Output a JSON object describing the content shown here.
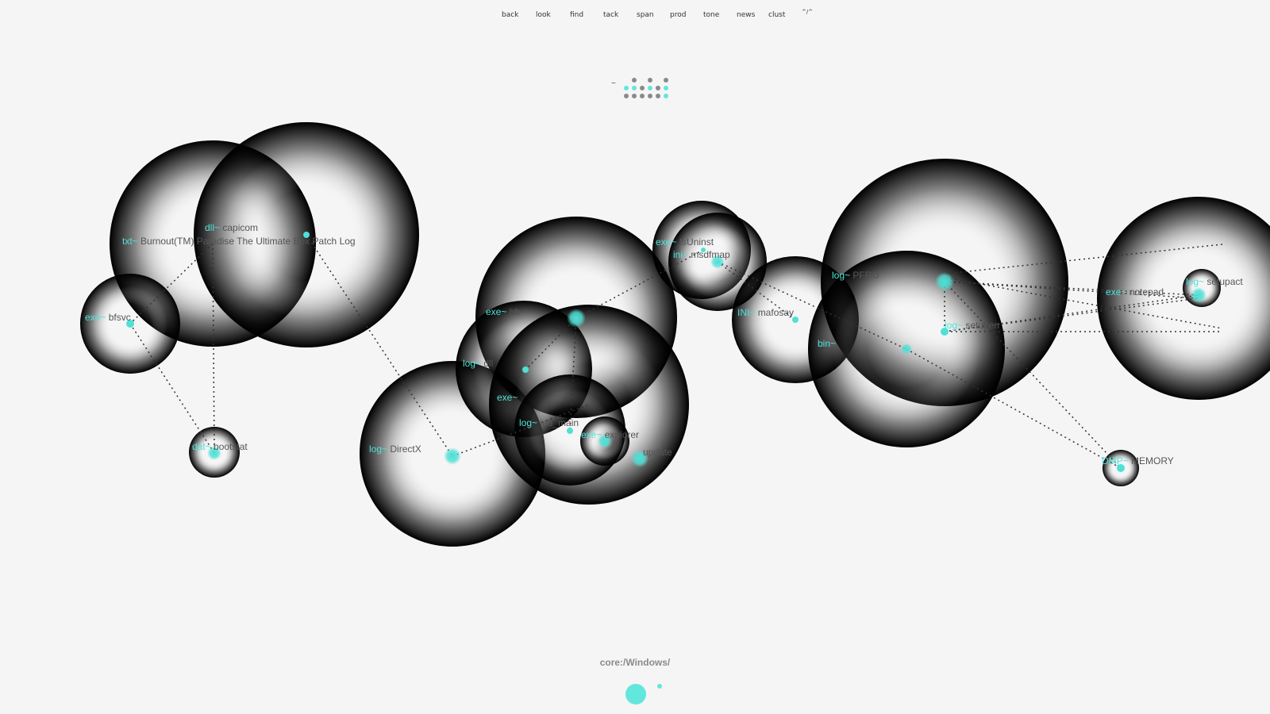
{
  "nav": {
    "items": [
      {
        "label": "back"
      },
      {
        "label": "look"
      },
      {
        "label": "find"
      },
      {
        "label": "tack"
      },
      {
        "label": "span"
      },
      {
        "label": "prod"
      },
      {
        "label": "tone"
      },
      {
        "label": "news"
      },
      {
        "label": "clust"
      },
      {
        "label": "^/^"
      }
    ]
  },
  "dotgrid": {
    "prefix": "~"
  },
  "colors": {
    "accent": "#4fe0d6",
    "background": "#f5f5f5",
    "label": "#555555",
    "shadow": "#000000"
  },
  "nodes": [
    {
      "id": "burnout",
      "ext": "txt~",
      "name": "Burnout(TM) Paradise The Ultimate Box Patch Log"
    },
    {
      "id": "capicom",
      "ext": "dll~",
      "name": "capicom"
    },
    {
      "id": "bfsvc",
      "ext": "exe~",
      "name": "bfsvc"
    },
    {
      "id": "bootstat",
      "ext": "dat~",
      "name": "bootstat"
    },
    {
      "id": "directx",
      "ext": "log~",
      "name": "DirectX"
    },
    {
      "id": "hh",
      "ext": "exe~",
      "name": "hh"
    },
    {
      "id": "log_dll",
      "ext": "log~",
      "name": "dll"
    },
    {
      "id": "exe_unnamed",
      "ext": "exe~",
      "name": ""
    },
    {
      "id": "ie8_main",
      "ext": "log~",
      "name": "ie8_main"
    },
    {
      "id": "explorer",
      "ext": "exe~",
      "name": "explorer"
    },
    {
      "id": "update",
      "ext": "",
      "name": "update"
    },
    {
      "id": "isuninst",
      "ext": "exe~",
      "name": "IsUninst"
    },
    {
      "id": "msdfmap",
      "ext": "ini~",
      "name": "msdfmap"
    },
    {
      "id": "mafosay",
      "ext": "INI~",
      "name": "mafosay"
    },
    {
      "id": "pfro",
      "ext": "log~",
      "name": "PFRO"
    },
    {
      "id": "bin",
      "ext": "bin~",
      "name": ""
    },
    {
      "id": "setupact",
      "ext": "log~",
      "name": "setupact"
    },
    {
      "id": "notepad",
      "ext": "exe~",
      "name": "notepad"
    },
    {
      "id": "setuperr",
      "ext": "log~",
      "name": "setuperr"
    },
    {
      "id": "memory",
      "ext": "DMP~",
      "name": "MEMORY"
    }
  ],
  "path": "core:/Windows/"
}
